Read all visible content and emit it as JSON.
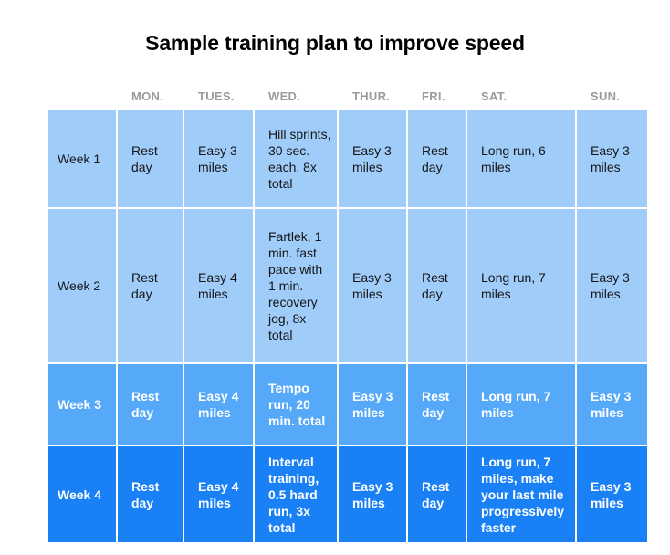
{
  "title": "Sample training plan to improve speed",
  "chart_data": {
    "type": "table",
    "title": "Sample training plan to improve speed",
    "day_headers": [
      "MON.",
      "TUES.",
      "WED.",
      "THUR.",
      "FRI.",
      "SAT.",
      "SUN."
    ],
    "rows": [
      {
        "label": "Week 1",
        "tone": "light",
        "cells": [
          "Rest day",
          "Easy 3 miles",
          "Hill sprints, 30 sec. each, 8x total",
          "Easy 3 miles",
          "Rest day",
          "Long run, 6 miles",
          "Easy 3 miles"
        ]
      },
      {
        "label": "Week 2",
        "tone": "light",
        "cells": [
          "Rest day",
          "Easy 4 miles",
          "Fartlek, 1 min. fast pace with 1 min. recovery jog, 8x total",
          "Easy 3 miles",
          "Rest day",
          "Long run, 7 miles",
          "Easy 3 miles"
        ]
      },
      {
        "label": "Week 3",
        "tone": "medium",
        "cells": [
          "Rest day",
          "Easy 4 miles",
          "Tempo run, 20 min. total",
          "Easy 3 miles",
          "Rest day",
          "Long run, 7 miles",
          "Easy 3 miles"
        ]
      },
      {
        "label": "Week 4",
        "tone": "dark",
        "cells": [
          "Rest day",
          "Easy 4 miles",
          "Interval training, 0.5 hard run, 3x total",
          "Easy 3 miles",
          "Rest day",
          "Long run, 7 miles, make your last mile progressively faster",
          "Easy 3 miles"
        ]
      }
    ]
  },
  "colors": {
    "row_light": "#a0ccfa",
    "row_medium": "#55a9f8",
    "row_dark": "#1981f5",
    "header_text": "#9b9b9b",
    "body_text": "#151515",
    "inverse_text": "#ffffff",
    "title_text": "#000000"
  }
}
